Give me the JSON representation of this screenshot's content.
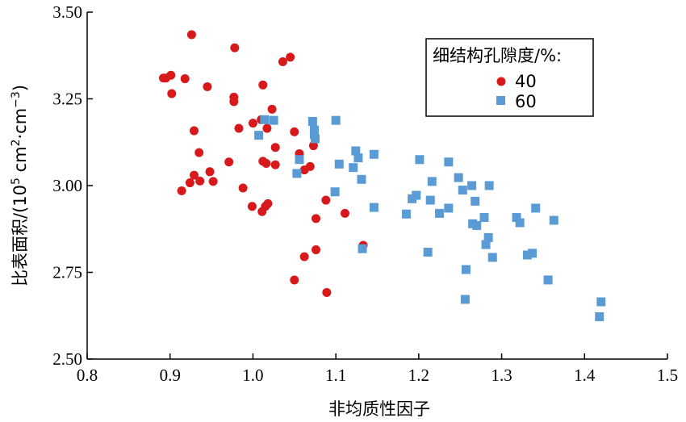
{
  "chart_data": {
    "type": "scatter",
    "xlabel": "非均质性因子",
    "ylabel_main": "比表面积/(10",
    "ylabel_exp1": "5",
    "ylabel_mid": " cm",
    "ylabel_exp2": "2",
    "ylabel_mid2": "·cm",
    "ylabel_exp3": "−3",
    "ylabel_end": ")",
    "xlim": [
      0.8,
      1.5
    ],
    "ylim": [
      2.5,
      3.5
    ],
    "xticks": [
      0.8,
      0.9,
      1.0,
      1.1,
      1.2,
      1.3,
      1.4,
      1.5
    ],
    "xtick_labels": [
      "0.8",
      "0.9",
      "1.0",
      "1.1",
      "1.2",
      "1.3",
      "1.4",
      "1.5"
    ],
    "yticks": [
      2.5,
      2.75,
      3.0,
      3.25,
      3.5
    ],
    "ytick_labels": [
      "2.50",
      "2.75",
      "3.00",
      "3.25",
      "3.50"
    ],
    "legend_title": "细结构孔隙度/%:",
    "legend_position": "top-right",
    "series": [
      {
        "name": "40",
        "color": "#d7191c",
        "marker": "circle",
        "points": [
          [
            0.926,
            3.435
          ],
          [
            0.978,
            3.397
          ],
          [
            1.045,
            3.37
          ],
          [
            1.036,
            3.357
          ],
          [
            0.895,
            3.31
          ],
          [
            0.901,
            3.318
          ],
          [
            0.892,
            3.31
          ],
          [
            0.918,
            3.308
          ],
          [
            0.945,
            3.285
          ],
          [
            1.012,
            3.29
          ],
          [
            0.902,
            3.265
          ],
          [
            0.977,
            3.255
          ],
          [
            0.977,
            3.242
          ],
          [
            1.023,
            3.22
          ],
          [
            1.01,
            3.19
          ],
          [
            1.0,
            3.18
          ],
          [
            0.983,
            3.165
          ],
          [
            1.017,
            3.165
          ],
          [
            0.929,
            3.158
          ],
          [
            1.05,
            3.155
          ],
          [
            0.935,
            3.095
          ],
          [
            1.056,
            3.092
          ],
          [
            1.027,
            3.11
          ],
          [
            1.073,
            3.115
          ],
          [
            0.971,
            3.068
          ],
          [
            1.012,
            3.07
          ],
          [
            1.016,
            3.064
          ],
          [
            1.027,
            3.06
          ],
          [
            1.069,
            3.055
          ],
          [
            1.062,
            3.045
          ],
          [
            0.948,
            3.04
          ],
          [
            0.929,
            3.03
          ],
          [
            0.936,
            3.013
          ],
          [
            0.952,
            3.012
          ],
          [
            0.924,
            3.008
          ],
          [
            0.914,
            2.985
          ],
          [
            0.988,
            2.993
          ],
          [
            1.088,
            2.958
          ],
          [
            0.999,
            2.94
          ],
          [
            1.018,
            2.948
          ],
          [
            1.015,
            2.94
          ],
          [
            1.011,
            2.925
          ],
          [
            1.111,
            2.92
          ],
          [
            1.076,
            2.905
          ],
          [
            1.133,
            2.828
          ],
          [
            1.076,
            2.815
          ],
          [
            1.062,
            2.795
          ],
          [
            1.05,
            2.728
          ],
          [
            1.089,
            2.692
          ]
        ]
      },
      {
        "name": "60",
        "color": "#5b9bd5",
        "marker": "square",
        "points": [
          [
            1.014,
            3.19
          ],
          [
            1.025,
            3.188
          ],
          [
            1.072,
            3.185
          ],
          [
            1.1,
            3.188
          ],
          [
            1.074,
            3.16
          ],
          [
            1.074,
            3.148
          ],
          [
            1.007,
            3.145
          ],
          [
            1.075,
            3.135
          ],
          [
            1.124,
            3.1
          ],
          [
            1.146,
            3.09
          ],
          [
            1.056,
            3.075
          ],
          [
            1.127,
            3.08
          ],
          [
            1.201,
            3.075
          ],
          [
            1.236,
            3.068
          ],
          [
            1.104,
            3.062
          ],
          [
            1.121,
            3.052
          ],
          [
            1.053,
            3.035
          ],
          [
            1.248,
            3.023
          ],
          [
            1.131,
            3.018
          ],
          [
            1.216,
            3.012
          ],
          [
            1.264,
            3.0
          ],
          [
            1.285,
            3.0
          ],
          [
            1.253,
            2.987
          ],
          [
            1.099,
            2.982
          ],
          [
            1.197,
            2.972
          ],
          [
            1.192,
            2.962
          ],
          [
            1.214,
            2.958
          ],
          [
            1.268,
            2.955
          ],
          [
            1.146,
            2.937
          ],
          [
            1.236,
            2.935
          ],
          [
            1.341,
            2.935
          ],
          [
            1.225,
            2.92
          ],
          [
            1.185,
            2.918
          ],
          [
            1.279,
            2.908
          ],
          [
            1.318,
            2.908
          ],
          [
            1.363,
            2.9
          ],
          [
            1.322,
            2.893
          ],
          [
            1.265,
            2.89
          ],
          [
            1.27,
            2.885
          ],
          [
            1.284,
            2.85
          ],
          [
            1.281,
            2.83
          ],
          [
            1.132,
            2.818
          ],
          [
            1.211,
            2.808
          ],
          [
            1.337,
            2.805
          ],
          [
            1.331,
            2.8
          ],
          [
            1.289,
            2.793
          ],
          [
            1.257,
            2.758
          ],
          [
            1.356,
            2.728
          ],
          [
            1.256,
            2.672
          ],
          [
            1.42,
            2.665
          ],
          [
            1.418,
            2.622
          ]
        ]
      }
    ]
  }
}
